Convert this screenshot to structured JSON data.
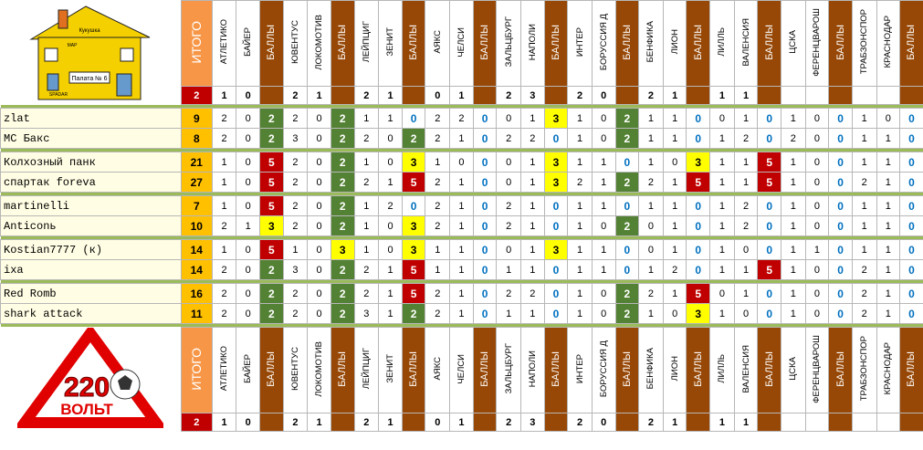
{
  "header": {
    "total_label": "ИТОГО",
    "points_label": "БАЛЛЫ",
    "teams": [
      "АТЛЕТИКО",
      "БАЙЕР",
      "ЮВЕНТУС",
      "ЛОКОМОТИВ",
      "ЛЕЙПЦИГ",
      "ЗЕНИТ",
      "АЯКС",
      "ЧЕЛСИ",
      "ЗАЛЬЦБУРГ",
      "НАПОЛИ",
      "ИНТЕР",
      "БОРУССИЯ Д",
      "БЕНФИКА",
      "ЛИОН",
      "ЛИЛЛЬ",
      "ВАЛЕНСИЯ",
      "ЦСКА",
      "ФЕРЕНЦВАРОШ",
      "ТРАБЗОНСПОР",
      "КРАСНОДАР"
    ]
  },
  "results": {
    "total": "2",
    "scores": [
      [
        "1",
        "0"
      ],
      [
        "2",
        "1"
      ],
      [
        "2",
        "1"
      ],
      [
        "0",
        "1"
      ],
      [
        "2",
        "3"
      ],
      [
        "2",
        "0"
      ],
      [
        "2",
        "1"
      ],
      [
        "1",
        "1"
      ],
      [
        "",
        ""
      ],
      [
        "",
        ""
      ]
    ]
  },
  "logos": {
    "top": {
      "sign": "Палата № 6",
      "lines": [
        "Кукушка",
        "MAP",
        "SPADAR"
      ]
    },
    "bottom": {
      "number": "220",
      "word": "ВОЛЬТ"
    }
  },
  "groups": [
    [
      {
        "name": "zlat",
        "total": "9",
        "preds": [
          [
            "2",
            "0",
            "2"
          ],
          [
            "2",
            "0",
            "2"
          ],
          [
            "1",
            "1",
            "0"
          ],
          [
            "2",
            "2",
            "0"
          ],
          [
            "0",
            "1",
            "3"
          ],
          [
            "1",
            "0",
            "2"
          ],
          [
            "1",
            "1",
            "0"
          ],
          [
            "0",
            "1",
            "0"
          ],
          [
            "1",
            "0",
            "0"
          ],
          [
            "1",
            "0",
            "0"
          ]
        ]
      },
      {
        "name": "MC Бакс",
        "total": "8",
        "preds": [
          [
            "2",
            "0",
            "2"
          ],
          [
            "3",
            "0",
            "2"
          ],
          [
            "2",
            "0",
            "2"
          ],
          [
            "2",
            "1",
            "0"
          ],
          [
            "2",
            "2",
            "0"
          ],
          [
            "1",
            "0",
            "2"
          ],
          [
            "1",
            "1",
            "0"
          ],
          [
            "1",
            "2",
            "0"
          ],
          [
            "2",
            "0",
            "0"
          ],
          [
            "1",
            "1",
            "0"
          ]
        ]
      }
    ],
    [
      {
        "name": "Колхозный панк",
        "total": "21",
        "preds": [
          [
            "1",
            "0",
            "5"
          ],
          [
            "2",
            "0",
            "2"
          ],
          [
            "1",
            "0",
            "3"
          ],
          [
            "1",
            "0",
            "0"
          ],
          [
            "0",
            "1",
            "3"
          ],
          [
            "1",
            "1",
            "0"
          ],
          [
            "1",
            "0",
            "3"
          ],
          [
            "1",
            "1",
            "5"
          ],
          [
            "1",
            "0",
            "0"
          ],
          [
            "1",
            "1",
            "0"
          ]
        ]
      },
      {
        "name": "спартак foreva",
        "total": "27",
        "preds": [
          [
            "1",
            "0",
            "5"
          ],
          [
            "2",
            "0",
            "2"
          ],
          [
            "2",
            "1",
            "5"
          ],
          [
            "2",
            "1",
            "0"
          ],
          [
            "0",
            "1",
            "3"
          ],
          [
            "2",
            "1",
            "2"
          ],
          [
            "2",
            "1",
            "5"
          ],
          [
            "1",
            "1",
            "5"
          ],
          [
            "1",
            "0",
            "0"
          ],
          [
            "2",
            "1",
            "0"
          ]
        ]
      }
    ],
    [
      {
        "name": "martinelli",
        "total": "7",
        "preds": [
          [
            "1",
            "0",
            "5"
          ],
          [
            "2",
            "0",
            "2"
          ],
          [
            "1",
            "2",
            "0"
          ],
          [
            "2",
            "1",
            "0"
          ],
          [
            "2",
            "1",
            "0"
          ],
          [
            "1",
            "1",
            "0"
          ],
          [
            "1",
            "1",
            "0"
          ],
          [
            "1",
            "2",
            "0"
          ],
          [
            "1",
            "0",
            "0"
          ],
          [
            "1",
            "1",
            "0"
          ]
        ]
      },
      {
        "name": "Anticonь",
        "total": "10",
        "preds": [
          [
            "2",
            "1",
            "3"
          ],
          [
            "2",
            "0",
            "2"
          ],
          [
            "1",
            "0",
            "3"
          ],
          [
            "2",
            "1",
            "0"
          ],
          [
            "2",
            "1",
            "0"
          ],
          [
            "1",
            "0",
            "2"
          ],
          [
            "0",
            "1",
            "0"
          ],
          [
            "1",
            "2",
            "0"
          ],
          [
            "1",
            "0",
            "0"
          ],
          [
            "1",
            "1",
            "0"
          ]
        ]
      }
    ],
    [
      {
        "name": "Kostian7777 (к)",
        "total": "14",
        "preds": [
          [
            "1",
            "0",
            "5"
          ],
          [
            "1",
            "0",
            "3"
          ],
          [
            "1",
            "0",
            "3"
          ],
          [
            "1",
            "1",
            "0"
          ],
          [
            "0",
            "1",
            "3"
          ],
          [
            "1",
            "1",
            "0"
          ],
          [
            "0",
            "1",
            "0"
          ],
          [
            "1",
            "0",
            "0"
          ],
          [
            "1",
            "1",
            "0"
          ],
          [
            "1",
            "1",
            "0"
          ]
        ]
      },
      {
        "name": "ixa",
        "total": "14",
        "preds": [
          [
            "2",
            "0",
            "2"
          ],
          [
            "3",
            "0",
            "2"
          ],
          [
            "2",
            "1",
            "5"
          ],
          [
            "1",
            "1",
            "0"
          ],
          [
            "1",
            "1",
            "0"
          ],
          [
            "1",
            "1",
            "0"
          ],
          [
            "1",
            "2",
            "0"
          ],
          [
            "1",
            "1",
            "5"
          ],
          [
            "1",
            "0",
            "0"
          ],
          [
            "2",
            "1",
            "0"
          ]
        ]
      }
    ],
    [
      {
        "name": "Red Romb",
        "total": "16",
        "preds": [
          [
            "2",
            "0",
            "2"
          ],
          [
            "2",
            "0",
            "2"
          ],
          [
            "2",
            "1",
            "5"
          ],
          [
            "2",
            "1",
            "0"
          ],
          [
            "2",
            "2",
            "0"
          ],
          [
            "1",
            "0",
            "2"
          ],
          [
            "2",
            "1",
            "5"
          ],
          [
            "0",
            "1",
            "0"
          ],
          [
            "1",
            "0",
            "0"
          ],
          [
            "2",
            "1",
            "0"
          ]
        ]
      },
      {
        "name": "shark attack",
        "total": "11",
        "preds": [
          [
            "2",
            "0",
            "2"
          ],
          [
            "2",
            "0",
            "2"
          ],
          [
            "3",
            "1",
            "2"
          ],
          [
            "2",
            "1",
            "0"
          ],
          [
            "1",
            "1",
            "0"
          ],
          [
            "1",
            "0",
            "2"
          ],
          [
            "1",
            "0",
            "3"
          ],
          [
            "1",
            "0",
            "0"
          ],
          [
            "1",
            "0",
            "0"
          ],
          [
            "2",
            "1",
            "0"
          ]
        ]
      }
    ]
  ],
  "colors": {
    "orange": "#f79646",
    "brown": "#974806",
    "green_ball": "#548235",
    "yellow_ball": "#ffff00",
    "red_ball": "#c00000",
    "separator": "#9bbb59",
    "total_bg": "#ffc000",
    "name_bg": "#fffde3"
  }
}
